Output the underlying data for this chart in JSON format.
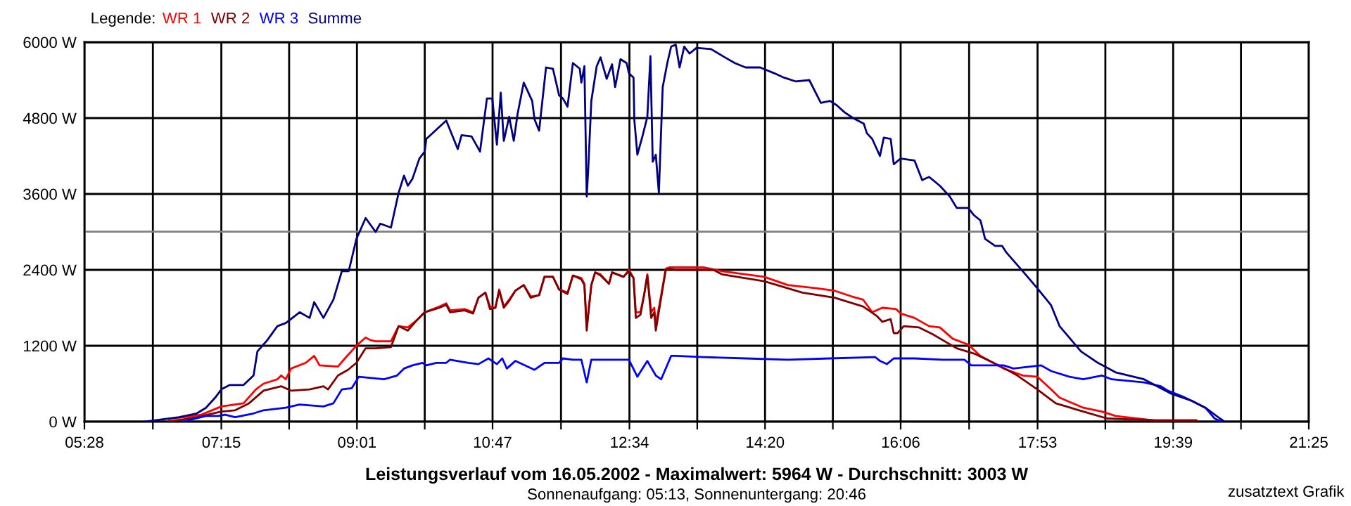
{
  "chart_data": {
    "type": "line",
    "title": "Leistungsverlauf vom 16.05.2002 - Maximalwert: 5964 W - Durchschnitt: 3003 W",
    "subtitle": "Sonnenaufgang: 05:13, Sonnenuntergang: 20:46",
    "legend_title": "Legende:",
    "annotations": [
      "zusatztext Grafik"
    ],
    "legend": "top left",
    "grid": true,
    "xlim": [
      5.4667,
      21.4167
    ],
    "xticks": [
      {
        "value": 5.4667,
        "label": "05:28"
      },
      {
        "value": 6.3583,
        "label": null
      },
      {
        "value": 7.25,
        "label": "07:15"
      },
      {
        "value": 8.1333,
        "label": null
      },
      {
        "value": 9.0167,
        "label": "09:01"
      },
      {
        "value": 9.9,
        "label": null
      },
      {
        "value": 10.7833,
        "label": "10:47"
      },
      {
        "value": 11.675,
        "label": null
      },
      {
        "value": 12.5667,
        "label": "12:34"
      },
      {
        "value": 13.45,
        "label": null
      },
      {
        "value": 14.3333,
        "label": "14:20"
      },
      {
        "value": 15.2167,
        "label": null
      },
      {
        "value": 16.1,
        "label": "16:06"
      },
      {
        "value": 16.9917,
        "label": null
      },
      {
        "value": 17.8833,
        "label": "17:53"
      },
      {
        "value": 18.7667,
        "label": null
      },
      {
        "value": 19.65,
        "label": "19:39"
      },
      {
        "value": 20.5333,
        "label": null
      },
      {
        "value": 21.4167,
        "label": "21:25"
      }
    ],
    "ylim": [
      0,
      6000
    ],
    "yticks": [
      {
        "value": 0,
        "label": "0 W"
      },
      {
        "value": 1200,
        "label": "1200 W"
      },
      {
        "value": 2400,
        "label": "2400 W"
      },
      {
        "value": 3600,
        "label": "3600 W"
      },
      {
        "value": 4800,
        "label": "4800 W"
      },
      {
        "value": 6000,
        "label": "6000 W"
      }
    ],
    "ref_lines": [
      {
        "axis": "y",
        "value": 3003,
        "color": "#808080"
      }
    ],
    "series": [
      {
        "name": "WR 1",
        "color": "#ff0000",
        "x": [
          6.57,
          6.99,
          7.25,
          7.54,
          7.7,
          7.8,
          7.98,
          8.03,
          8.09,
          8.16,
          8.35,
          8.46,
          8.53,
          8.77,
          8.86,
          9.01,
          9.13,
          9.19,
          9.26,
          9.46,
          9.56,
          9.68,
          9.81,
          9.9,
          10.09,
          10.18,
          10.23,
          10.42,
          10.53,
          10.6,
          10.69,
          10.75,
          10.82,
          10.87,
          10.93,
          11.0,
          11.08,
          11.19,
          11.28,
          11.39,
          11.46,
          11.57,
          11.65,
          11.76,
          11.83,
          11.94,
          11.98,
          12.01,
          12.03,
          12.07,
          12.12,
          12.19,
          12.3,
          12.34,
          12.49,
          12.56,
          12.62,
          12.65,
          12.71,
          12.76,
          12.8,
          12.85,
          12.89,
          12.91,
          12.98,
          13.04,
          13.09,
          13.22,
          13.53,
          13.77,
          14.08,
          14.32,
          14.63,
          15.0,
          15.24,
          15.46,
          15.61,
          15.73,
          15.86,
          16.04,
          16.1,
          16.28,
          16.47,
          16.61,
          16.78,
          16.98,
          17.14,
          17.2,
          17.44,
          17.69,
          17.88,
          18.06,
          18.17,
          18.48,
          18.72,
          18.9,
          19.03,
          19.4,
          19.95
        ],
        "values": [
          40,
          110,
          240,
          290,
          510,
          600,
          670,
          730,
          670,
          840,
          930,
          1040,
          890,
          870,
          1000,
          1200,
          1330,
          1290,
          1270,
          1270,
          1510,
          1490,
          1620,
          1730,
          1820,
          1870,
          1760,
          1780,
          1730,
          1960,
          2040,
          1820,
          1800,
          2090,
          1820,
          1930,
          2070,
          2160,
          1980,
          2000,
          2290,
          2290,
          2090,
          2040,
          2310,
          2270,
          2180,
          1490,
          1710,
          2160,
          2360,
          2330,
          2180,
          2360,
          2290,
          2400,
          2270,
          1730,
          1730,
          2020,
          2330,
          1730,
          1800,
          1530,
          2000,
          2420,
          2440,
          2440,
          2440,
          2380,
          2330,
          2290,
          2160,
          2110,
          2070,
          1980,
          1930,
          1730,
          1800,
          1780,
          1710,
          1640,
          1510,
          1490,
          1310,
          1220,
          1040,
          1000,
          840,
          730,
          710,
          510,
          380,
          220,
          160,
          90,
          70,
          20,
          20
        ]
      },
      {
        "name": "WR 2",
        "color": "#800000",
        "x": [
          6.57,
          6.93,
          7.25,
          7.43,
          7.61,
          7.8,
          8.03,
          8.16,
          8.4,
          8.58,
          8.64,
          8.77,
          8.9,
          9.01,
          9.13,
          9.26,
          9.46,
          9.56,
          9.68,
          9.81,
          9.9,
          10.09,
          10.18,
          10.23,
          10.42,
          10.53,
          10.6,
          10.69,
          10.75,
          10.82,
          10.87,
          10.93,
          11.0,
          11.08,
          11.19,
          11.28,
          11.39,
          11.46,
          11.57,
          11.65,
          11.76,
          11.83,
          11.94,
          11.98,
          12.01,
          12.03,
          12.07,
          12.12,
          12.19,
          12.3,
          12.34,
          12.49,
          12.56,
          12.62,
          12.65,
          12.71,
          12.76,
          12.8,
          12.85,
          12.89,
          12.91,
          12.98,
          13.04,
          13.09,
          13.17,
          13.66,
          13.77,
          14.32,
          14.82,
          15.24,
          15.61,
          15.79,
          15.86,
          15.97,
          16.01,
          16.06,
          16.14,
          16.34,
          16.52,
          16.83,
          17.07,
          17.38,
          17.62,
          17.88,
          18.12,
          18.48,
          18.79,
          19.42,
          19.95
        ],
        "values": [
          0,
          70,
          160,
          180,
          290,
          490,
          560,
          490,
          510,
          560,
          510,
          730,
          820,
          930,
          1160,
          1160,
          1180,
          1510,
          1440,
          1620,
          1730,
          1800,
          1850,
          1730,
          1760,
          1710,
          1960,
          2040,
          1780,
          1800,
          2070,
          1800,
          1910,
          2070,
          2160,
          1960,
          2000,
          2290,
          2290,
          2090,
          2020,
          2310,
          2250,
          2160,
          1440,
          1690,
          2160,
          2360,
          2310,
          2180,
          2360,
          2290,
          2380,
          2270,
          1640,
          1690,
          2020,
          2310,
          1640,
          1730,
          1440,
          1960,
          2400,
          2420,
          2400,
          2400,
          2330,
          2220,
          2040,
          1960,
          1820,
          1670,
          1580,
          1620,
          1400,
          1400,
          1510,
          1490,
          1380,
          1160,
          1070,
          890,
          730,
          510,
          290,
          160,
          50,
          20,
          20
        ]
      },
      {
        "name": "WR 3",
        "color": "#0000ff",
        "x": [
          6.75,
          7.05,
          7.21,
          7.3,
          7.43,
          7.67,
          7.8,
          8.09,
          8.27,
          8.58,
          8.71,
          8.82,
          8.95,
          9.04,
          9.37,
          9.54,
          9.63,
          9.74,
          9.87,
          9.92,
          10.05,
          10.18,
          10.23,
          10.47,
          10.6,
          10.73,
          10.84,
          10.91,
          10.97,
          11.08,
          11.33,
          11.46,
          11.65,
          11.7,
          11.83,
          11.94,
          12.01,
          12.07,
          12.3,
          12.56,
          12.67,
          12.8,
          12.91,
          12.98,
          13.11,
          13.17,
          13.53,
          14.08,
          14.63,
          15.18,
          15.77,
          15.83,
          15.92,
          16.01,
          16.28,
          16.65,
          16.93,
          17.02,
          17.2,
          17.44,
          17.57,
          17.93,
          18.06,
          18.3,
          18.48,
          18.72,
          18.85,
          19.27,
          19.49,
          19.58,
          19.77,
          19.89,
          20.07,
          20.19,
          20.28
        ],
        "values": [
          0,
          90,
          90,
          110,
          70,
          130,
          180,
          220,
          270,
          240,
          290,
          510,
          530,
          710,
          670,
          730,
          840,
          890,
          930,
          890,
          930,
          930,
          980,
          930,
          910,
          1000,
          910,
          1000,
          840,
          960,
          820,
          930,
          930,
          1000,
          980,
          980,
          620,
          980,
          980,
          980,
          710,
          960,
          730,
          670,
          1040,
          1040,
          1020,
          1000,
          980,
          1000,
          1020,
          960,
          910,
          1000,
          1000,
          980,
          980,
          890,
          890,
          890,
          840,
          890,
          800,
          710,
          670,
          730,
          670,
          620,
          560,
          490,
          400,
          330,
          220,
          50,
          0
        ]
      },
      {
        "name": "Summe",
        "color": "#000080",
        "x": [
          6.26,
          6.7,
          6.93,
          7.05,
          7.17,
          7.25,
          7.36,
          7.54,
          7.67,
          7.72,
          7.85,
          7.98,
          8.09,
          8.27,
          8.4,
          8.46,
          8.58,
          8.71,
          8.82,
          8.91,
          9.01,
          9.13,
          9.26,
          9.32,
          9.46,
          9.56,
          9.63,
          9.68,
          9.74,
          9.83,
          9.9,
          9.92,
          10.18,
          10.33,
          10.38,
          10.51,
          10.62,
          10.71,
          10.78,
          10.84,
          10.89,
          10.93,
          11.0,
          11.06,
          11.11,
          11.19,
          11.3,
          11.33,
          11.39,
          11.48,
          11.57,
          11.65,
          11.7,
          11.76,
          11.83,
          11.92,
          11.94,
          11.98,
          12.01,
          12.03,
          12.07,
          12.14,
          12.19,
          12.27,
          12.34,
          12.38,
          12.45,
          12.53,
          12.56,
          12.62,
          12.63,
          12.67,
          12.74,
          12.8,
          12.84,
          12.87,
          12.91,
          12.95,
          13.0,
          13.06,
          13.11,
          13.17,
          13.22,
          13.28,
          13.35,
          13.44,
          13.63,
          13.81,
          13.94,
          14.08,
          14.27,
          14.45,
          14.58,
          14.73,
          14.91,
          15.06,
          15.18,
          15.27,
          15.37,
          15.48,
          15.62,
          15.66,
          15.73,
          15.83,
          15.88,
          15.97,
          16.01,
          16.1,
          16.28,
          16.38,
          16.47,
          16.61,
          16.74,
          16.83,
          16.98,
          17.05,
          17.14,
          17.2,
          17.33,
          17.42,
          17.48,
          17.69,
          17.88,
          18.06,
          18.17,
          18.45,
          18.67,
          18.9,
          19.27,
          19.63,
          19.89,
          20.07,
          20.26,
          20.32
        ],
        "values": [
          0,
          70,
          130,
          220,
          380,
          510,
          580,
          580,
          730,
          1110,
          1290,
          1510,
          1560,
          1730,
          1640,
          1890,
          1640,
          1930,
          2380,
          2380,
          2890,
          3220,
          3000,
          3130,
          3070,
          3620,
          3890,
          3730,
          3840,
          4160,
          4270,
          4470,
          4760,
          4310,
          4530,
          4510,
          4270,
          5110,
          5110,
          4380,
          5200,
          4440,
          4820,
          4440,
          4870,
          5360,
          5070,
          4780,
          4600,
          5600,
          5580,
          5160,
          5110,
          4980,
          5670,
          5580,
          5360,
          5620,
          3560,
          3990,
          5070,
          5620,
          5760,
          5420,
          5650,
          5290,
          5730,
          5670,
          5510,
          5440,
          4780,
          4220,
          4530,
          4820,
          5780,
          4110,
          4220,
          3620,
          5290,
          5670,
          5930,
          5960,
          5600,
          5930,
          5820,
          5910,
          5890,
          5760,
          5670,
          5600,
          5600,
          5510,
          5440,
          5380,
          5400,
          5040,
          5070,
          5000,
          4890,
          4800,
          4710,
          4560,
          4470,
          4200,
          4490,
          4470,
          4070,
          4160,
          4130,
          3820,
          3870,
          3730,
          3560,
          3380,
          3380,
          3270,
          3180,
          2890,
          2780,
          2780,
          2670,
          2380,
          2110,
          1840,
          1510,
          1110,
          930,
          780,
          670,
          440,
          330,
          220,
          50,
          0
        ]
      }
    ]
  }
}
